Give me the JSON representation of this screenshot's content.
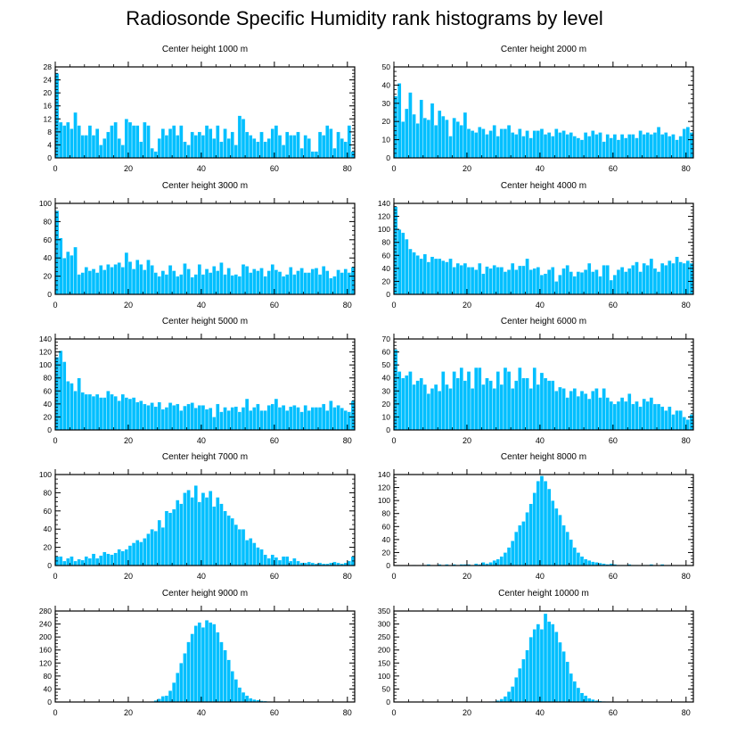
{
  "figure_title": "Radiosonde Specific Humidity rank histograms by level",
  "colors": {
    "bar": "#00bfff",
    "bar_edge": "#ffffff",
    "axis": "#000000"
  },
  "chart_data": [
    {
      "type": "bar",
      "title": "Center height 1000 m",
      "xlabel": "",
      "ylabel": "",
      "xlim": [
        0,
        82
      ],
      "ylim": [
        0,
        28
      ],
      "xticks": [
        0,
        20,
        40,
        60,
        80
      ],
      "yticks": [
        0,
        4,
        8,
        12,
        16,
        20,
        24,
        28
      ],
      "values": [
        26,
        11,
        10,
        11,
        9,
        14,
        10,
        7,
        7,
        10,
        7,
        9,
        4,
        6,
        8,
        10,
        11,
        6,
        4,
        12,
        11,
        10,
        10,
        5,
        11,
        10,
        3,
        2,
        6,
        9,
        7,
        9,
        10,
        7,
        10,
        5,
        4,
        8,
        7,
        8,
        7,
        10,
        9,
        6,
        10,
        5,
        9,
        6,
        8,
        4,
        13,
        12,
        8,
        7,
        6,
        5,
        8,
        5,
        6,
        9,
        10,
        7,
        4,
        8,
        7,
        7,
        8,
        3,
        7,
        6,
        2,
        2,
        8,
        7,
        10,
        9,
        3,
        8,
        6,
        5,
        10,
        2
      ]
    },
    {
      "type": "bar",
      "title": "Center height 2000 m",
      "xlabel": "",
      "ylabel": "",
      "xlim": [
        0,
        82
      ],
      "ylim": [
        0,
        50
      ],
      "xticks": [
        0,
        20,
        40,
        60,
        80
      ],
      "yticks": [
        0,
        10,
        20,
        30,
        40,
        50
      ],
      "values": [
        34,
        41,
        20,
        27,
        36,
        24,
        19,
        32,
        22,
        21,
        30,
        18,
        26,
        23,
        21,
        12,
        22,
        20,
        18,
        25,
        16,
        15,
        14,
        17,
        16,
        13,
        15,
        18,
        12,
        16,
        16,
        18,
        14,
        13,
        16,
        12,
        15,
        11,
        15,
        15,
        16,
        13,
        14,
        12,
        16,
        14,
        15,
        13,
        14,
        12,
        11,
        10,
        14,
        12,
        15,
        13,
        14,
        9,
        13,
        11,
        13,
        10,
        13,
        11,
        13,
        13,
        11,
        15,
        13,
        14,
        13,
        14,
        17,
        13,
        14,
        12,
        13,
        10,
        12,
        16,
        17,
        14
      ]
    },
    {
      "type": "bar",
      "title": "Center height 3000 m",
      "xlabel": "",
      "ylabel": "",
      "xlim": [
        0,
        82
      ],
      "ylim": [
        0,
        100
      ],
      "xticks": [
        0,
        20,
        40,
        60,
        80
      ],
      "yticks": [
        0,
        20,
        40,
        60,
        80,
        100
      ],
      "values": [
        92,
        62,
        40,
        47,
        43,
        52,
        22,
        24,
        30,
        26,
        28,
        24,
        32,
        27,
        33,
        30,
        33,
        35,
        30,
        46,
        36,
        28,
        38,
        33,
        27,
        38,
        32,
        24,
        20,
        26,
        22,
        32,
        26,
        20,
        22,
        34,
        28,
        19,
        22,
        33,
        22,
        28,
        24,
        31,
        26,
        35,
        22,
        29,
        21,
        22,
        20,
        33,
        31,
        24,
        28,
        26,
        29,
        20,
        26,
        33,
        27,
        25,
        20,
        22,
        30,
        22,
        26,
        29,
        24,
        24,
        28,
        29,
        22,
        31,
        26,
        18,
        20,
        27,
        24,
        28,
        24,
        30
      ]
    },
    {
      "type": "bar",
      "title": "Center height 4000 m",
      "xlabel": "",
      "ylabel": "",
      "xlim": [
        0,
        82
      ],
      "ylim": [
        0,
        140
      ],
      "xticks": [
        0,
        20,
        40,
        60,
        80
      ],
      "yticks": [
        0,
        20,
        40,
        60,
        80,
        100,
        120,
        140
      ],
      "values": [
        135,
        100,
        95,
        85,
        70,
        65,
        60,
        55,
        62,
        50,
        58,
        55,
        55,
        52,
        50,
        55,
        42,
        48,
        45,
        48,
        42,
        42,
        38,
        48,
        32,
        43,
        40,
        45,
        42,
        42,
        35,
        38,
        48,
        38,
        44,
        44,
        55,
        38,
        40,
        42,
        30,
        32,
        38,
        42,
        20,
        30,
        40,
        45,
        35,
        28,
        35,
        34,
        38,
        48,
        35,
        38,
        28,
        45,
        45,
        22,
        30,
        38,
        42,
        35,
        40,
        45,
        50,
        35,
        48,
        45,
        55,
        40,
        35,
        48,
        45,
        52,
        48,
        58,
        50,
        48,
        52,
        48
      ]
    },
    {
      "type": "bar",
      "title": "Center height 5000 m",
      "xlabel": "",
      "ylabel": "",
      "xlim": [
        0,
        82
      ],
      "ylim": [
        0,
        140
      ],
      "xticks": [
        0,
        20,
        40,
        60,
        80
      ],
      "yticks": [
        0,
        20,
        40,
        60,
        80,
        100,
        120,
        140
      ],
      "values": [
        112,
        122,
        105,
        75,
        72,
        60,
        80,
        58,
        55,
        55,
        52,
        55,
        50,
        50,
        60,
        55,
        52,
        45,
        55,
        50,
        48,
        50,
        43,
        45,
        40,
        38,
        42,
        36,
        43,
        32,
        35,
        42,
        38,
        40,
        30,
        37,
        40,
        42,
        34,
        38,
        38,
        32,
        34,
        20,
        40,
        28,
        35,
        30,
        35,
        36,
        28,
        35,
        48,
        30,
        35,
        40,
        30,
        30,
        38,
        40,
        48,
        35,
        38,
        30,
        36,
        38,
        35,
        28,
        38,
        30,
        35,
        35,
        35,
        40,
        30,
        45,
        35,
        38,
        34,
        30,
        28,
        45
      ]
    },
    {
      "type": "bar",
      "title": "Center height 6000 m",
      "xlabel": "",
      "ylabel": "",
      "xlim": [
        0,
        82
      ],
      "ylim": [
        0,
        70
      ],
      "xticks": [
        0,
        20,
        40,
        60,
        80
      ],
      "yticks": [
        0,
        10,
        20,
        30,
        40,
        50,
        60,
        70
      ],
      "values": [
        62,
        45,
        40,
        42,
        45,
        35,
        38,
        40,
        35,
        28,
        32,
        35,
        30,
        45,
        35,
        32,
        45,
        40,
        48,
        38,
        45,
        32,
        48,
        48,
        35,
        40,
        38,
        32,
        45,
        35,
        48,
        45,
        32,
        38,
        48,
        40,
        40,
        32,
        48,
        35,
        44,
        40,
        38,
        38,
        30,
        33,
        32,
        25,
        30,
        32,
        26,
        30,
        28,
        24,
        30,
        32,
        25,
        32,
        25,
        22,
        20,
        22,
        25,
        22,
        28,
        20,
        22,
        18,
        24,
        22,
        25,
        20,
        20,
        18,
        15,
        18,
        12,
        15,
        15,
        10,
        8,
        12
      ]
    },
    {
      "type": "bar",
      "title": "Center height 7000 m",
      "xlabel": "",
      "ylabel": "",
      "xlim": [
        0,
        82
      ],
      "ylim": [
        0,
        100
      ],
      "xticks": [
        0,
        20,
        40,
        60,
        80
      ],
      "yticks": [
        0,
        20,
        40,
        60,
        80,
        100
      ],
      "values": [
        10,
        10,
        5,
        8,
        10,
        5,
        7,
        6,
        10,
        8,
        13,
        8,
        11,
        15,
        13,
        12,
        14,
        18,
        16,
        18,
        22,
        25,
        28,
        26,
        30,
        35,
        40,
        38,
        50,
        42,
        60,
        58,
        62,
        72,
        68,
        80,
        83,
        75,
        88,
        70,
        80,
        75,
        82,
        65,
        75,
        68,
        60,
        55,
        52,
        45,
        40,
        40,
        28,
        30,
        25,
        20,
        18,
        12,
        8,
        12,
        9,
        6,
        10,
        10,
        5,
        8,
        5,
        3,
        3,
        4,
        3,
        2,
        3,
        2,
        2,
        3,
        4,
        3,
        2,
        3,
        5,
        10
      ]
    },
    {
      "type": "bar",
      "title": "Center height 8000 m",
      "xlabel": "",
      "ylabel": "",
      "xlim": [
        0,
        82
      ],
      "ylim": [
        0,
        140
      ],
      "xticks": [
        0,
        20,
        40,
        60,
        80
      ],
      "yticks": [
        0,
        20,
        40,
        60,
        80,
        100,
        120,
        140
      ],
      "values": [
        0,
        0,
        0,
        0,
        0,
        1,
        0,
        0,
        1,
        2,
        0,
        0,
        2,
        0,
        2,
        0,
        2,
        1,
        2,
        2,
        2,
        0,
        3,
        2,
        5,
        3,
        5,
        8,
        10,
        14,
        20,
        28,
        38,
        52,
        62,
        68,
        82,
        95,
        112,
        130,
        138,
        130,
        118,
        100,
        88,
        78,
        62,
        52,
        40,
        28,
        20,
        14,
        10,
        8,
        6,
        5,
        4,
        3,
        2,
        3,
        2,
        1,
        1,
        1,
        2,
        1,
        1,
        0,
        1,
        1,
        2,
        0,
        0,
        2,
        0,
        1,
        0,
        0,
        0,
        0,
        0,
        0
      ]
    },
    {
      "type": "bar",
      "title": "Center height 9000 m",
      "xlabel": "",
      "ylabel": "",
      "xlim": [
        0,
        82
      ],
      "ylim": [
        0,
        280
      ],
      "xticks": [
        0,
        20,
        40,
        60,
        80
      ],
      "yticks": [
        0,
        40,
        80,
        120,
        160,
        200,
        240,
        280
      ],
      "values": [
        0,
        0,
        0,
        0,
        0,
        0,
        0,
        0,
        0,
        0,
        0,
        0,
        0,
        0,
        0,
        0,
        0,
        0,
        0,
        0,
        0,
        0,
        0,
        0,
        1,
        1,
        2,
        5,
        10,
        18,
        20,
        35,
        60,
        90,
        120,
        150,
        185,
        210,
        235,
        245,
        230,
        252,
        245,
        240,
        215,
        185,
        160,
        130,
        95,
        70,
        45,
        30,
        20,
        12,
        8,
        6,
        4,
        3,
        2,
        1,
        1,
        1,
        0,
        0,
        0,
        0,
        0,
        0,
        0,
        0,
        0,
        0,
        0,
        0,
        0,
        0,
        0,
        0,
        0,
        0,
        0,
        0
      ]
    },
    {
      "type": "bar",
      "title": "Center height 10000 m",
      "xlabel": "",
      "ylabel": "",
      "xlim": [
        0,
        82
      ],
      "ylim": [
        0,
        350
      ],
      "xticks": [
        0,
        20,
        40,
        60,
        80
      ],
      "yticks": [
        0,
        50,
        100,
        150,
        200,
        250,
        300,
        350
      ],
      "values": [
        0,
        0,
        0,
        0,
        0,
        0,
        0,
        0,
        0,
        0,
        0,
        0,
        0,
        0,
        0,
        0,
        0,
        0,
        0,
        0,
        0,
        0,
        0,
        0,
        0,
        1,
        2,
        3,
        6,
        12,
        22,
        40,
        60,
        95,
        130,
        165,
        200,
        250,
        280,
        300,
        280,
        340,
        310,
        300,
        270,
        230,
        195,
        155,
        110,
        80,
        55,
        35,
        25,
        15,
        10,
        6,
        4,
        3,
        2,
        1,
        1,
        0,
        0,
        0,
        0,
        0,
        0,
        0,
        0,
        0,
        0,
        0,
        0,
        0,
        0,
        0,
        0,
        0,
        0,
        0,
        0,
        0
      ]
    }
  ]
}
